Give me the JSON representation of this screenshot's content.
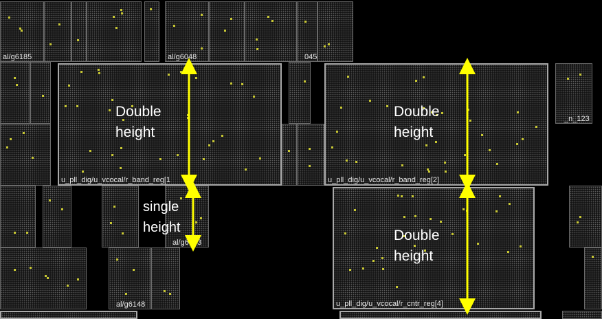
{
  "instance_labels": {
    "top_left": "al/g6185",
    "top_mid": "al/g6048",
    "top_right": "045",
    "right_mid": "_n_123",
    "single_cell": "al/g6053",
    "bottom_left": "al/g6148"
  },
  "registers": {
    "reg1": "u_pll_dig/u_vcocal/r_band_reg[1",
    "reg2": "u_pll_dig/u_vcocal/r_band_reg[2]",
    "reg3": "u_pll_dig/u_vcocal/r_cntr_reg[4]"
  },
  "annotations": {
    "double_1": {
      "line1": "Double",
      "line2": "height"
    },
    "double_2": {
      "line1": "Double",
      "line2": "height"
    },
    "double_3": {
      "line1": "Double",
      "line2": "height"
    },
    "single": {
      "line1": "single",
      "line2": "height"
    }
  },
  "colors": {
    "arrow": "#ffff00",
    "pin_dot": "#c8c832",
    "cell_border": "#6a6a6a",
    "highlight_border": "#a9a9a9",
    "background": "#000000"
  }
}
